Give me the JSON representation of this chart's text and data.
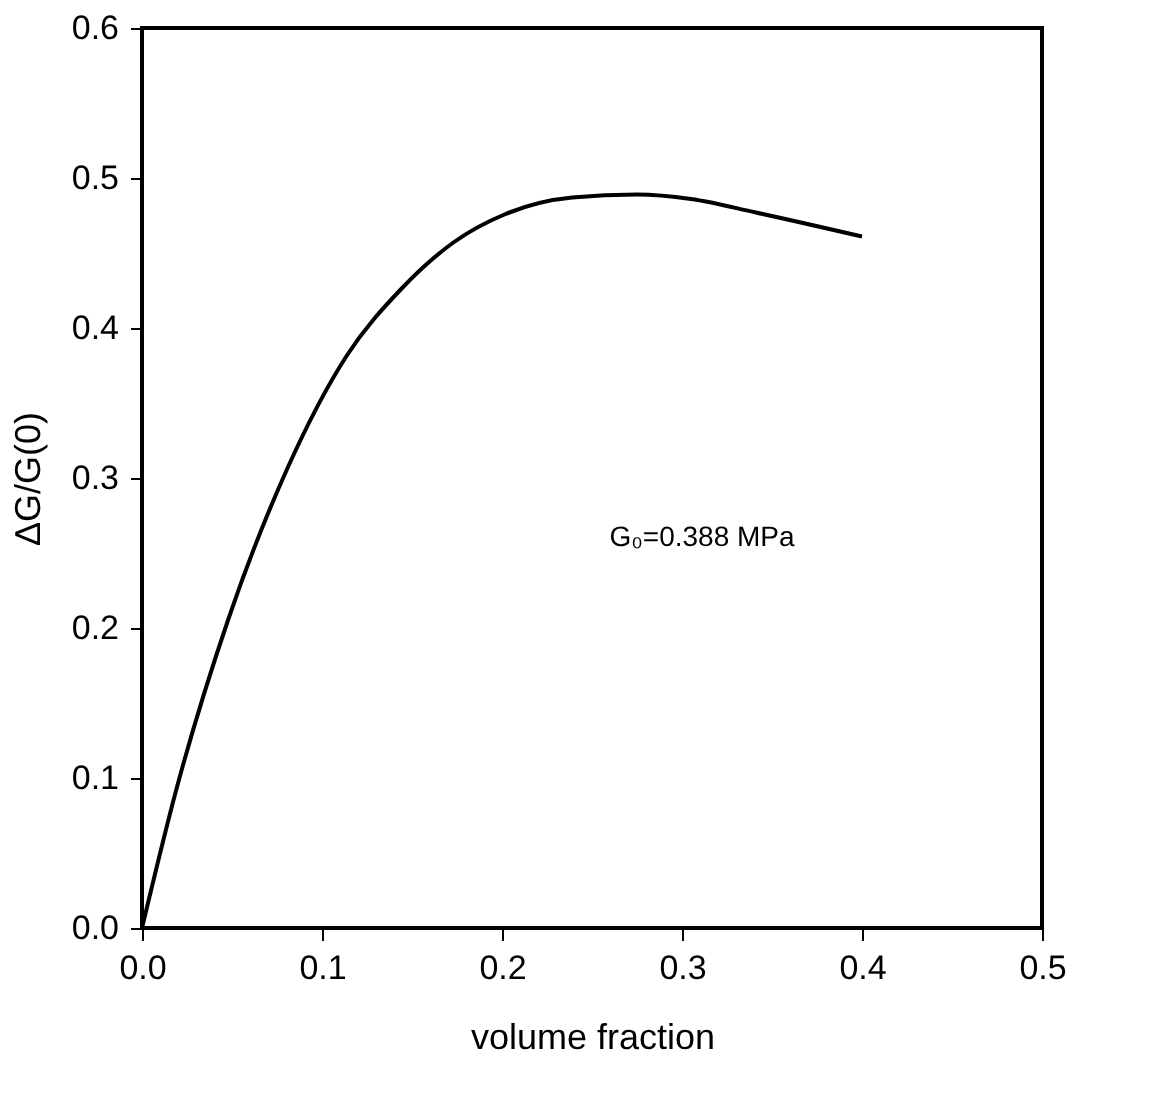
{
  "chart_data": {
    "type": "line",
    "xlabel": "volume fraction",
    "ylabel": "ΔG/G(0)",
    "x": [
      0,
      0.019,
      0.048,
      0.081,
      0.114,
      0.144,
      0.173,
      0.202,
      0.239,
      0.275,
      0.305,
      0.341,
      0.4
    ],
    "series": [
      {
        "color": "#000000",
        "values": [
          0,
          0.092,
          0.206,
          0.307,
          0.382,
          0.426,
          0.457,
          0.476,
          0.487,
          0.489,
          0.486,
          0.477,
          0.461
        ]
      }
    ],
    "xlim": [
      0,
      0.5
    ],
    "xticks": [
      {
        "value": 0,
        "label": "0.0"
      },
      0.1,
      0.2,
      0.3,
      0.4,
      0.5
    ],
    "ylim": [
      0,
      0.6
    ],
    "yticks": [
      {
        "value": 0,
        "label": "0.0"
      },
      0.1,
      0.2,
      0.3,
      0.4,
      0.5,
      0.6
    ],
    "annotations": [
      "G₀=0.388 MPa"
    ],
    "grid": false,
    "marker": "none",
    "line_style": "solid"
  }
}
